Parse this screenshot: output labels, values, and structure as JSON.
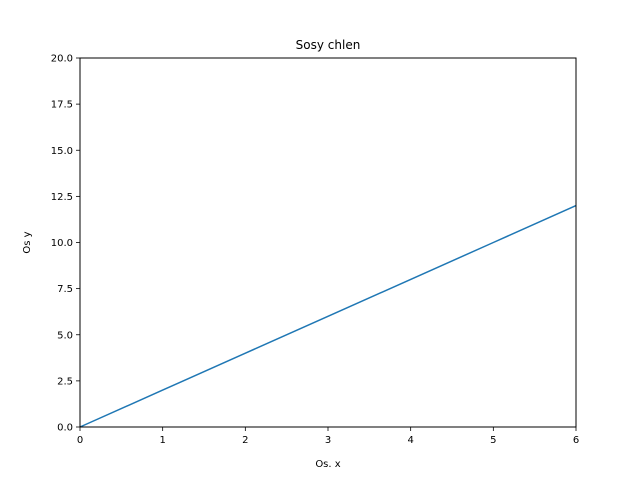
{
  "chart_data": {
    "type": "line",
    "title": "Sosy chlen",
    "xlabel": "Os. x",
    "ylabel": "Os y",
    "xlim": [
      0,
      6
    ],
    "ylim": [
      0,
      20
    ],
    "xticks": [
      0,
      1,
      2,
      3,
      4,
      5,
      6
    ],
    "yticks": [
      0.0,
      2.5,
      5.0,
      7.5,
      10.0,
      12.5,
      15.0,
      17.5,
      20.0
    ],
    "xtick_labels": [
      "0",
      "1",
      "2",
      "3",
      "4",
      "5",
      "6"
    ],
    "ytick_labels": [
      "0.0",
      "2.5",
      "5.0",
      "7.5",
      "10.0",
      "12.5",
      "15.0",
      "17.5",
      "20.0"
    ],
    "grid": false,
    "series": [
      {
        "color": "#1f77b4",
        "x": [
          0,
          1,
          2,
          3,
          4,
          5,
          6
        ],
        "y": [
          0,
          2,
          4,
          6,
          8,
          10,
          12
        ]
      }
    ]
  }
}
